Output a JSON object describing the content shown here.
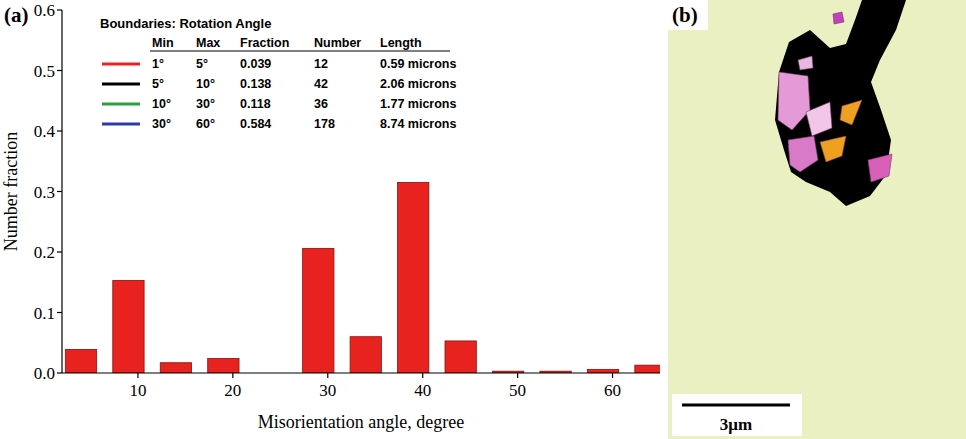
{
  "chart_data": {
    "type": "histogram",
    "panel_label": "(a)",
    "x_label": "Misorientation angle, degree",
    "y_label": "Number fraction",
    "bins": [
      1.5,
      6.5,
      11.5,
      16.5,
      21.5,
      26.5,
      31.5,
      36.5,
      41.5,
      46.5,
      51.5,
      56.5,
      61.5,
      66.5
    ],
    "values": [
      0.039,
      0.153,
      0.017,
      0.024,
      0,
      0.206,
      0.06,
      0.315,
      0.053,
      0.003,
      0.003,
      0.006,
      0.013
    ],
    "color": "#e8231f",
    "xlim": [
      2,
      65
    ],
    "xticks": [
      10,
      20,
      30,
      40,
      50,
      60
    ],
    "ylim": [
      0,
      0.6
    ],
    "yticks": [
      {
        "value": 0,
        "label": "0.0"
      },
      0.1,
      0.2,
      0.3,
      0.4,
      0.5,
      0.6
    ],
    "grid": false,
    "legend_table": {
      "title": "Boundaries: Rotation Angle",
      "columns": [
        "Min",
        "Max",
        "Fraction",
        "Number",
        "Length"
      ],
      "rows": [
        {
          "color": "#e8231f",
          "cells": [
            "1°",
            "5°",
            "0.039",
            "12",
            "0.59 microns"
          ]
        },
        {
          "color": "#000000",
          "cells": [
            "5°",
            "10°",
            "0.138",
            "42",
            "2.06 microns"
          ]
        },
        {
          "color": "#2e9e3e",
          "cells": [
            "10°",
            "30°",
            "0.118",
            "36",
            "1.77 microns"
          ]
        },
        {
          "color": "#2a3aa8",
          "cells": [
            "30°",
            "60°",
            "0.584",
            "178",
            "8.74 microns"
          ]
        }
      ]
    }
  },
  "micrograph": {
    "panel_label": "(b)",
    "scale_bar": "3μm"
  }
}
